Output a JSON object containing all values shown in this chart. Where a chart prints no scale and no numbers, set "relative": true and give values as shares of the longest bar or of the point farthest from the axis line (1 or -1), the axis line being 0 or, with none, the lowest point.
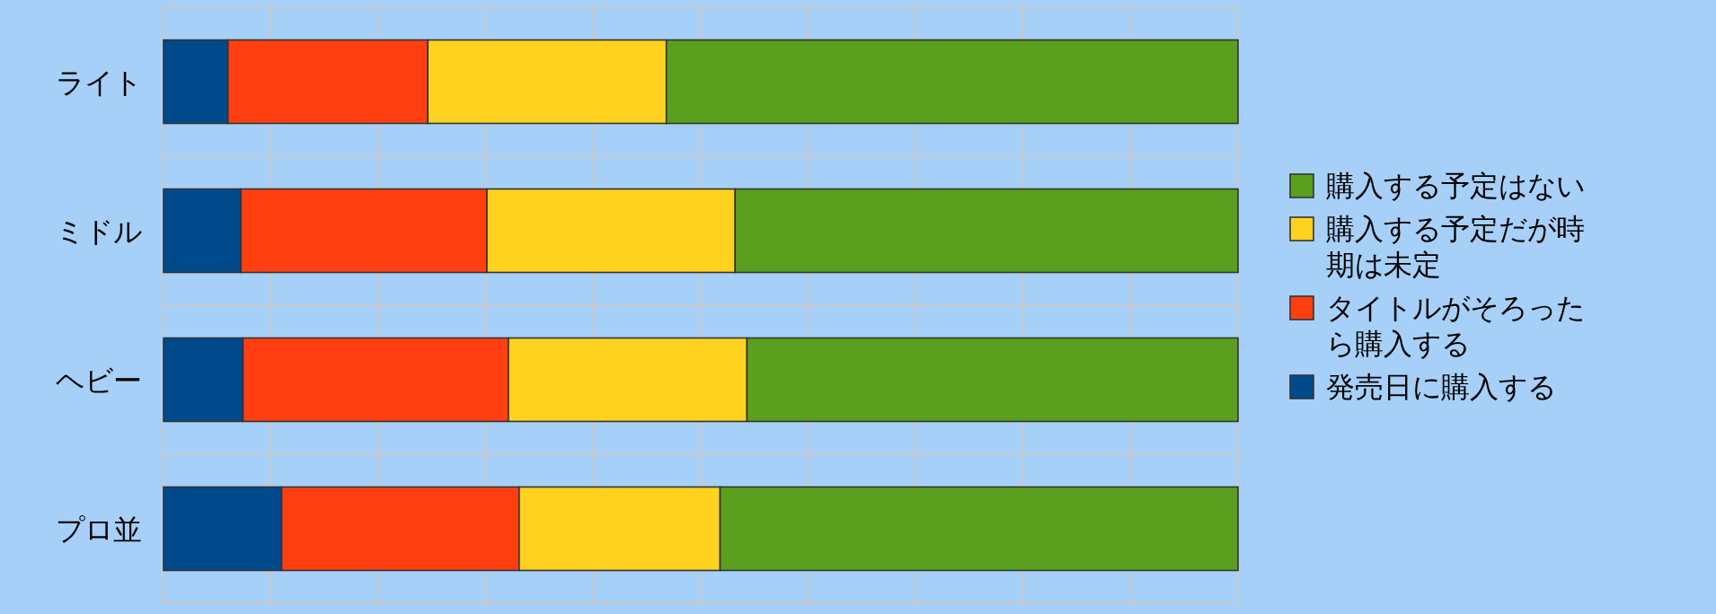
{
  "chart_data": {
    "type": "bar",
    "orientation": "horizontal",
    "stacked": true,
    "relative": true,
    "grid": true,
    "legend": "right",
    "categories": [
      "ライト",
      "ミドル",
      "ヘビー",
      "プロ並"
    ],
    "series": [
      {
        "name": "発売日に購入する",
        "color": "#004a8c",
        "values": [
          0.06,
          0.072,
          0.074,
          0.11
        ]
      },
      {
        "name": "タイトルがそろったら購入する",
        "color": "#ff3f0f",
        "values": [
          0.186,
          0.229,
          0.247,
          0.221
        ]
      },
      {
        "name": "購入する予定だが時期は未定",
        "color": "#ffd21f",
        "values": [
          0.222,
          0.231,
          0.222,
          0.187
        ]
      },
      {
        "name": "購入する予定はない",
        "color": "#5aa01e",
        "values": [
          0.532,
          0.468,
          0.457,
          0.482
        ]
      }
    ]
  }
}
